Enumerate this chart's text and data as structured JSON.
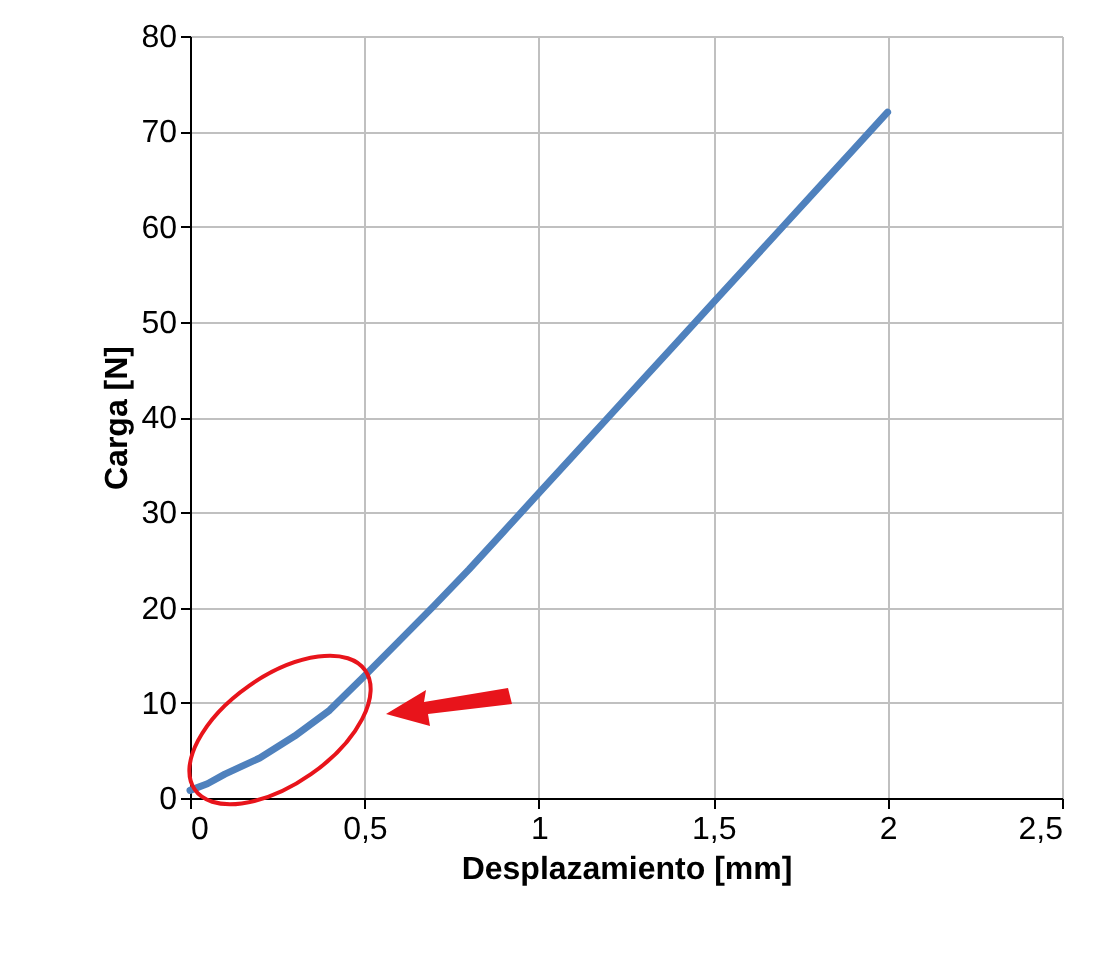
{
  "chart_data": {
    "type": "line",
    "xlabel": "Desplazamiento [mm]",
    "ylabel": "Carga [N]",
    "x": [
      0,
      0.05,
      0.1,
      0.2,
      0.3,
      0.4,
      0.5,
      0.6,
      0.7,
      0.8,
      0.9,
      1.0,
      1.1,
      1.2,
      1.3,
      1.4,
      1.5,
      1.6,
      1.7,
      1.8,
      1.9,
      2.0
    ],
    "series": [
      {
        "color": "#4f81bd",
        "values": [
          0.8,
          1.5,
          2.5,
          4.2,
          6.5,
          9.2,
          12.8,
          16.5,
          20.2,
          24,
          28,
          32,
          36,
          40,
          44,
          48,
          52,
          56,
          60,
          64,
          68,
          72
        ]
      }
    ],
    "xlim": [
      0,
      2.5
    ],
    "xticks": [
      {
        "value": 0,
        "label": "0"
      },
      {
        "value": 0.5,
        "label": "0,5"
      },
      {
        "value": 1,
        "label": "1"
      },
      {
        "value": 1.5,
        "label": "1,5"
      },
      {
        "value": 2,
        "label": "2"
      },
      {
        "value": 2.5,
        "label": "2,5"
      }
    ],
    "ylim": [
      0,
      80
    ],
    "yticks": [
      0,
      10,
      20,
      30,
      40,
      50,
      60,
      70,
      80
    ],
    "grid": true,
    "marker": "none",
    "line_style": "solid"
  }
}
